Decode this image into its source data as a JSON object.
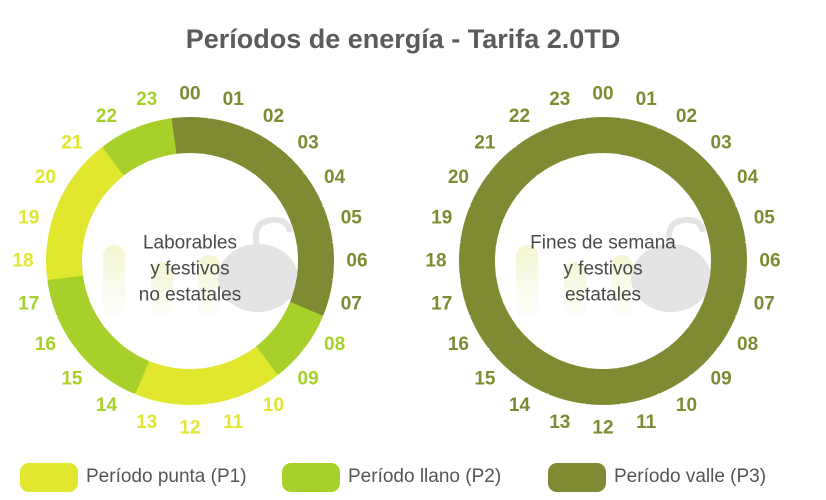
{
  "title": "Períodos de energía - Tarifa 2.0TD",
  "colors": {
    "P1": "#e1e62f",
    "P2": "#a7d12a",
    "P3": "#7f8a32",
    "title": "#5b5b5b"
  },
  "legend": [
    {
      "key": "P1",
      "label": "Período punta (P1)"
    },
    {
      "key": "P2",
      "label": "Período llano (P2)"
    },
    {
      "key": "P3",
      "label": "Período valle (P3)"
    }
  ],
  "chart_data": [
    {
      "type": "radial-clock",
      "center_label": [
        "Laborables",
        "y festivos",
        "no estatales"
      ],
      "hours": [
        "00",
        "01",
        "02",
        "03",
        "04",
        "05",
        "06",
        "07",
        "08",
        "09",
        "10",
        "11",
        "12",
        "13",
        "14",
        "15",
        "16",
        "17",
        "18",
        "19",
        "20",
        "21",
        "22",
        "23"
      ],
      "periods": [
        "P3",
        "P3",
        "P3",
        "P3",
        "P3",
        "P3",
        "P3",
        "P3",
        "P2",
        "P2",
        "P1",
        "P1",
        "P1",
        "P1",
        "P2",
        "P2",
        "P2",
        "P2",
        "P1",
        "P1",
        "P1",
        "P1",
        "P2",
        "P2"
      ]
    },
    {
      "type": "radial-clock",
      "center_label": [
        "Fines de semana",
        "y festivos",
        "estatales"
      ],
      "hours": [
        "00",
        "01",
        "02",
        "03",
        "04",
        "05",
        "06",
        "07",
        "08",
        "09",
        "10",
        "11",
        "12",
        "13",
        "14",
        "15",
        "16",
        "17",
        "18",
        "19",
        "20",
        "21",
        "22",
        "23"
      ],
      "periods": [
        "P3",
        "P3",
        "P3",
        "P3",
        "P3",
        "P3",
        "P3",
        "P3",
        "P3",
        "P3",
        "P3",
        "P3",
        "P3",
        "P3",
        "P3",
        "P3",
        "P3",
        "P3",
        "P3",
        "P3",
        "P3",
        "P3",
        "P3",
        "P3"
      ]
    }
  ]
}
